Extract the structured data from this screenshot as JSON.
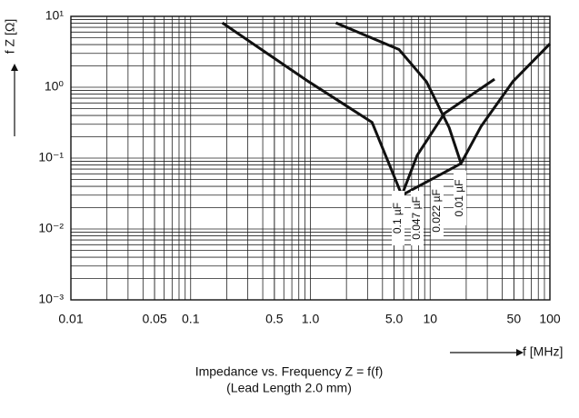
{
  "chart_data": {
    "type": "line",
    "title": "Impedance vs. Frequency Z = f(f)",
    "subtitle": "(Lead Length 2.0 mm)",
    "x_label": "f [MHz]",
    "y_label": "f Z [Ω]",
    "log_x": true,
    "log_y": true,
    "grid": true,
    "xlim": [
      0.01,
      100
    ],
    "ylim": [
      0.001,
      10
    ],
    "xticks": [
      0.01,
      0.05,
      0.1,
      0.5,
      {
        "value": 1,
        "label": "1.0"
      },
      {
        "value": 5,
        "label": "5.0"
      },
      10,
      50,
      100
    ],
    "yticks": [
      {
        "value": 0.001,
        "label": "10⁻³"
      },
      {
        "value": 0.01,
        "label": "10⁻²"
      },
      {
        "value": 0.1,
        "label": "10⁻¹"
      },
      {
        "value": 1,
        "label": "10⁰"
      },
      {
        "value": 10,
        "label": "10¹"
      }
    ],
    "annotations": [
      "0.1 µF",
      "0.047 µF",
      "0.022 µF",
      "0.01 µF"
    ],
    "series": [
      {
        "color": "#111111",
        "x": [
          0.184,
          0.966,
          3.27,
          5.8,
          7.8,
          13.2,
          34.5
        ],
        "values": [
          8.1,
          1.2,
          0.32,
          0.03,
          0.11,
          0.43,
          1.3
        ]
      },
      {
        "color": "#111111",
        "x": [
          1.63,
          5.5,
          9.3,
          14.4,
          18.1,
          26.6,
          49,
          100
        ],
        "values": [
          8.1,
          3.4,
          1.2,
          0.27,
          0.084,
          0.28,
          1.2,
          4.1
        ]
      },
      {
        "color": "#111111",
        "x": [
          5.8,
          18.1
        ],
        "values": [
          0.03,
          0.084
        ]
      }
    ]
  }
}
